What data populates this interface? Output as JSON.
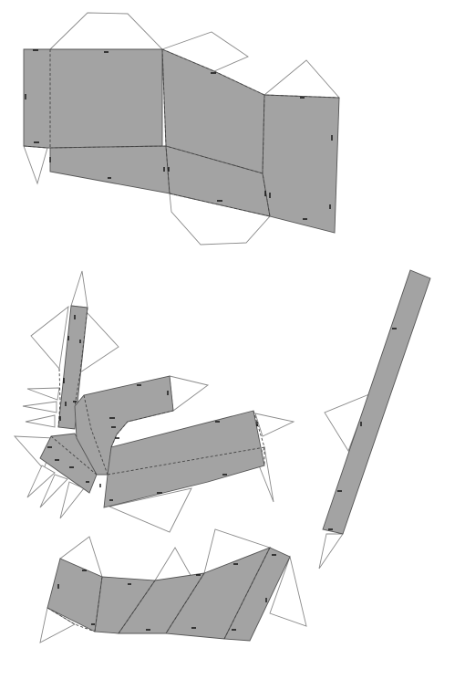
{
  "canvas": {
    "background": "#ffffff"
  },
  "style": {
    "panel_fill": "#a3a3a3",
    "panel_stroke": "#555555",
    "flap_stroke": "#8a8a8a",
    "fold_line": "dashed"
  },
  "pieces": [
    {
      "id": "piece-top-band",
      "panels": 3,
      "flaps": 6
    },
    {
      "id": "piece-bent-arm",
      "panels": 4,
      "flaps": 10
    },
    {
      "id": "piece-diagonal-strip",
      "panels": 1,
      "flaps": 2
    },
    {
      "id": "piece-bottom-band",
      "panels": 5,
      "flaps": 5
    }
  ]
}
